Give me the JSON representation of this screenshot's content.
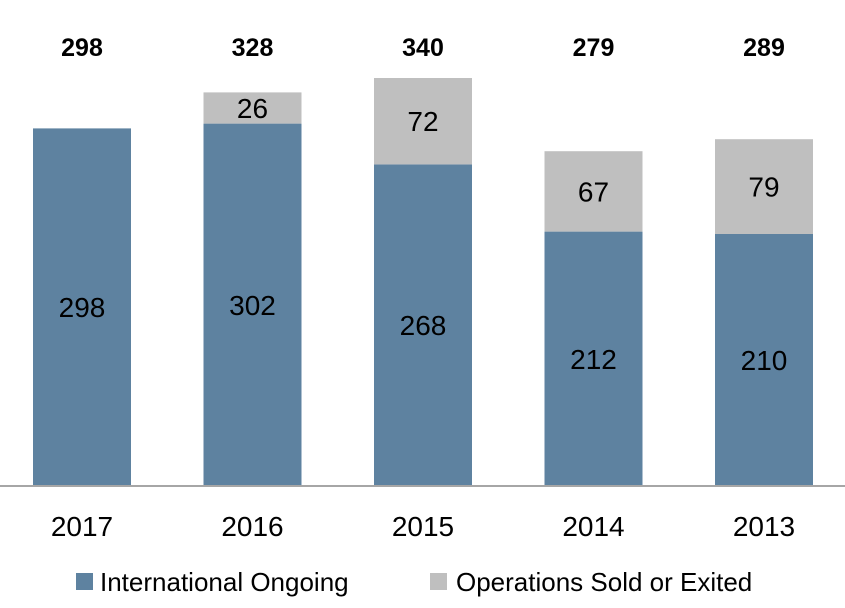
{
  "chart_data": {
    "type": "bar",
    "stacked": true,
    "categories": [
      "2017",
      "2016",
      "2015",
      "2014",
      "2013"
    ],
    "series": [
      {
        "name": "International Ongoing",
        "values": [
          298,
          302,
          268,
          212,
          210
        ],
        "color": "#5e82a0"
      },
      {
        "name": "Operations Sold or Exited",
        "values": [
          0,
          26,
          72,
          67,
          79
        ],
        "color": "#bfbfbf"
      }
    ],
    "segment_labels": [
      [
        "298",
        "302",
        "268",
        "212",
        "210"
      ],
      [
        "",
        "26",
        "72",
        "67",
        "79"
      ]
    ],
    "totals": [
      "298",
      "328",
      "340",
      "279",
      "289"
    ],
    "ylim": [
      0,
      340
    ],
    "title": "",
    "xlabel": "",
    "ylabel": "",
    "grid": false,
    "legend_position": "bottom"
  }
}
